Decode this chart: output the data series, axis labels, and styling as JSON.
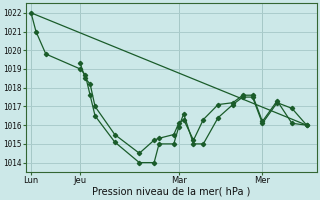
{
  "xlabel": "Pression niveau de la mer( hPa )",
  "bg_color": "#cce8e8",
  "grid_color": "#aacccc",
  "line_color": "#1a5c2a",
  "ylim": [
    1013.5,
    1022.5
  ],
  "yticks": [
    1014,
    1015,
    1016,
    1017,
    1018,
    1019,
    1020,
    1021,
    1022
  ],
  "xtick_labels": [
    "Lun",
    "Jeu",
    "Mar",
    "Mer"
  ],
  "xtick_positions": [
    0,
    10,
    30,
    47
  ],
  "vline_positions": [
    0,
    10,
    30,
    47
  ],
  "xlim": [
    -1,
    58
  ],
  "series1_x": [
    0,
    1,
    3,
    10,
    11,
    12,
    13,
    17,
    22,
    25,
    26,
    29,
    30,
    31,
    33,
    35,
    38,
    41,
    43,
    45,
    47,
    50,
    53,
    56
  ],
  "series1_y": [
    1022.0,
    1021.0,
    1019.8,
    1019.0,
    1018.7,
    1017.6,
    1016.5,
    1015.1,
    1014.0,
    1014.0,
    1015.0,
    1015.0,
    1015.9,
    1016.6,
    1015.0,
    1015.0,
    1016.4,
    1017.1,
    1017.5,
    1017.5,
    1016.1,
    1017.2,
    1016.9,
    1016.0
  ],
  "series2_x": [
    10,
    11,
    12,
    13,
    17,
    22,
    25,
    26,
    29,
    30,
    31,
    33,
    35,
    38,
    41,
    43,
    45,
    47,
    50,
    53,
    56
  ],
  "series2_y": [
    1019.3,
    1018.5,
    1018.2,
    1017.0,
    1015.5,
    1014.5,
    1015.2,
    1015.3,
    1015.5,
    1016.1,
    1016.3,
    1015.2,
    1016.3,
    1017.1,
    1017.2,
    1017.6,
    1017.6,
    1016.2,
    1017.3,
    1016.1,
    1016.0
  ],
  "series3_x": [
    0,
    56
  ],
  "series3_y": [
    1022.0,
    1016.0
  ],
  "total_points": 57
}
